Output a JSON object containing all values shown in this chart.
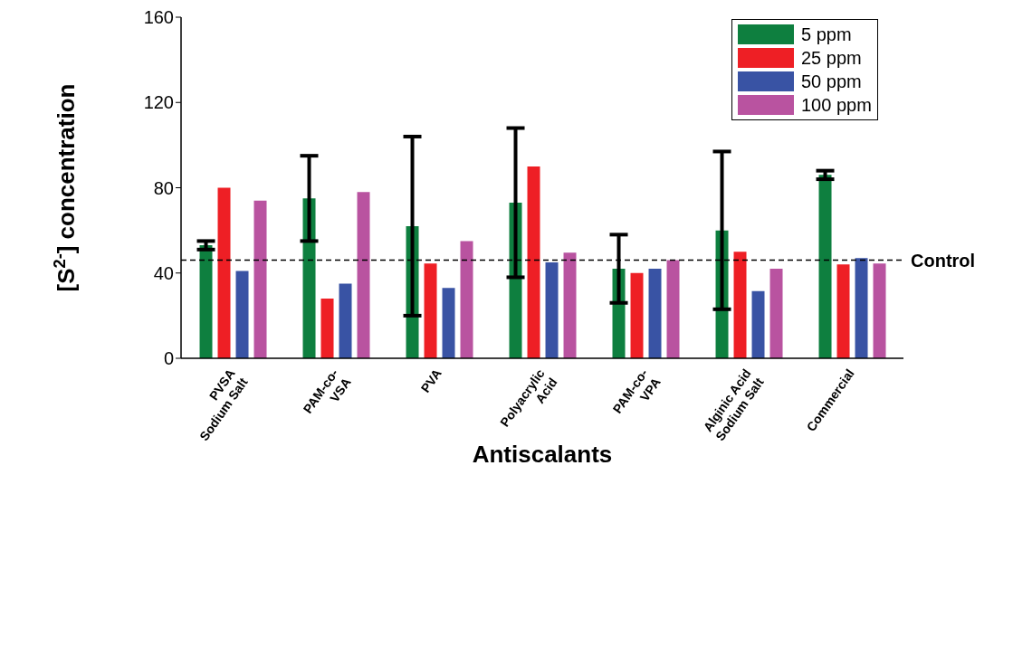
{
  "chart_data": {
    "type": "bar",
    "xlabel": "Antiscalants",
    "ylabel": "[S$^{2-}$] concentration",
    "categories": [
      "PVSA\nSodium Salt",
      "PAM-co-\nVSA",
      "PVA",
      "Polyacrylic\nAcid",
      "PAM-co-\nVPA",
      "Alginic Acid\nSodium Salt",
      "Commercial"
    ],
    "series": [
      {
        "name": "5 ppm",
        "color": "#0e7f3f",
        "values": [
          53,
          75,
          62,
          73,
          42,
          60,
          86
        ],
        "errors": [
          2,
          20,
          42,
          35,
          16,
          37,
          2
        ]
      },
      {
        "name": "25 ppm",
        "color": "#ee1f25",
        "values": [
          80,
          28,
          44.5,
          90,
          40,
          50,
          44
        ]
      },
      {
        "name": "50 ppm",
        "color": "#3953a4",
        "values": [
          41,
          35,
          33,
          45,
          42,
          31.5,
          47
        ]
      },
      {
        "name": "100 ppm",
        "color": "#b953a0",
        "values": [
          74,
          78,
          55,
          49.5,
          46,
          42,
          44.5
        ]
      }
    ],
    "ylim": [
      0,
      160
    ],
    "yticks": [
      0,
      40,
      80,
      120,
      160
    ],
    "ref_lines": [
      {
        "axis": "y",
        "value": 46,
        "label": "Control",
        "color": "#000000",
        "line_style": "dashed"
      }
    ],
    "legend": "top right"
  }
}
